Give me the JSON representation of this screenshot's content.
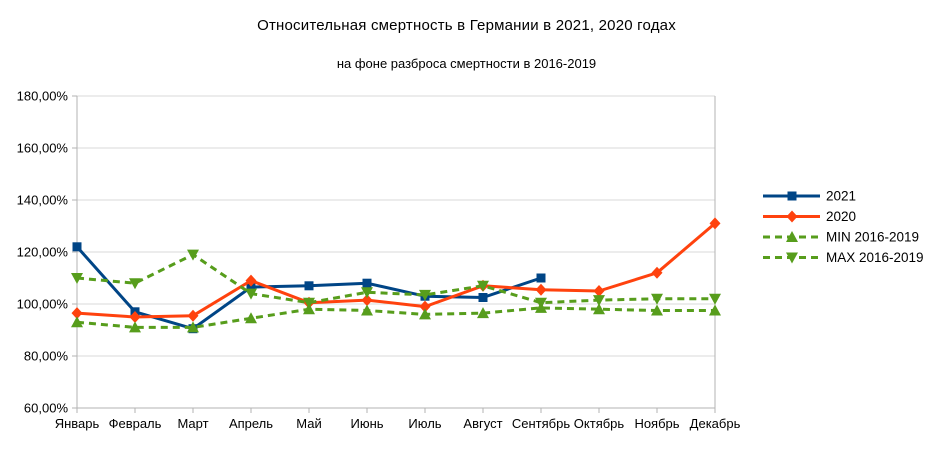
{
  "title": "Относительная смертность в Германии в 2021, 2020 годах",
  "subtitle": "на фоне разброса смертности в 2016-2019",
  "colors": {
    "background": "#ffffff",
    "grid": "#d9d9d9",
    "axis": "#b3b3b3",
    "text": "#000000",
    "series_2021": "#004586",
    "series_2020": "#ff420e",
    "series_green": "#579d1c"
  },
  "chart_data": {
    "type": "line",
    "title": "Относительная смертность в Германии в 2021, 2020 годах",
    "subtitle": "на фоне разброса смертности в 2016-2019",
    "categories": [
      "Январь",
      "Февраль",
      "Март",
      "Апрель",
      "Май",
      "Июнь",
      "Июль",
      "Август",
      "Сентябрь",
      "Октябрь",
      "Ноябрь",
      "Декабрь"
    ],
    "y_ticks": [
      "180,00%",
      "160,00%",
      "140,00%",
      "120,00%",
      "100,00%",
      "80,00%",
      "60,00%"
    ],
    "ylim": [
      60,
      180
    ],
    "y_step": 20,
    "y_unit": "%",
    "grid": "horizontal",
    "legend_position": "right",
    "series": [
      {
        "name": "2021",
        "color": "#004586",
        "marker": "square",
        "dash": false,
        "values": [
          122,
          97,
          90.5,
          106.5,
          107,
          108,
          103,
          102.5,
          110,
          null,
          null,
          null
        ]
      },
      {
        "name": "2020",
        "color": "#ff420e",
        "marker": "diamond",
        "dash": false,
        "values": [
          96.5,
          95,
          95.5,
          109,
          100.5,
          101.5,
          99,
          107,
          105.5,
          105,
          112,
          131
        ]
      },
      {
        "name": "MIN 2016-2019",
        "color": "#579d1c",
        "marker": "triangle-up",
        "dash": true,
        "values": [
          93,
          91,
          91,
          94.5,
          98,
          97.5,
          96,
          96.5,
          98.5,
          98,
          97.5,
          97.5
        ]
      },
      {
        "name": "MAX 2016-2019",
        "color": "#579d1c",
        "marker": "triangle-down",
        "dash": true,
        "values": [
          110,
          108,
          119,
          104,
          100.5,
          104.5,
          103.5,
          107,
          100.5,
          101.5,
          102,
          102
        ]
      }
    ]
  }
}
